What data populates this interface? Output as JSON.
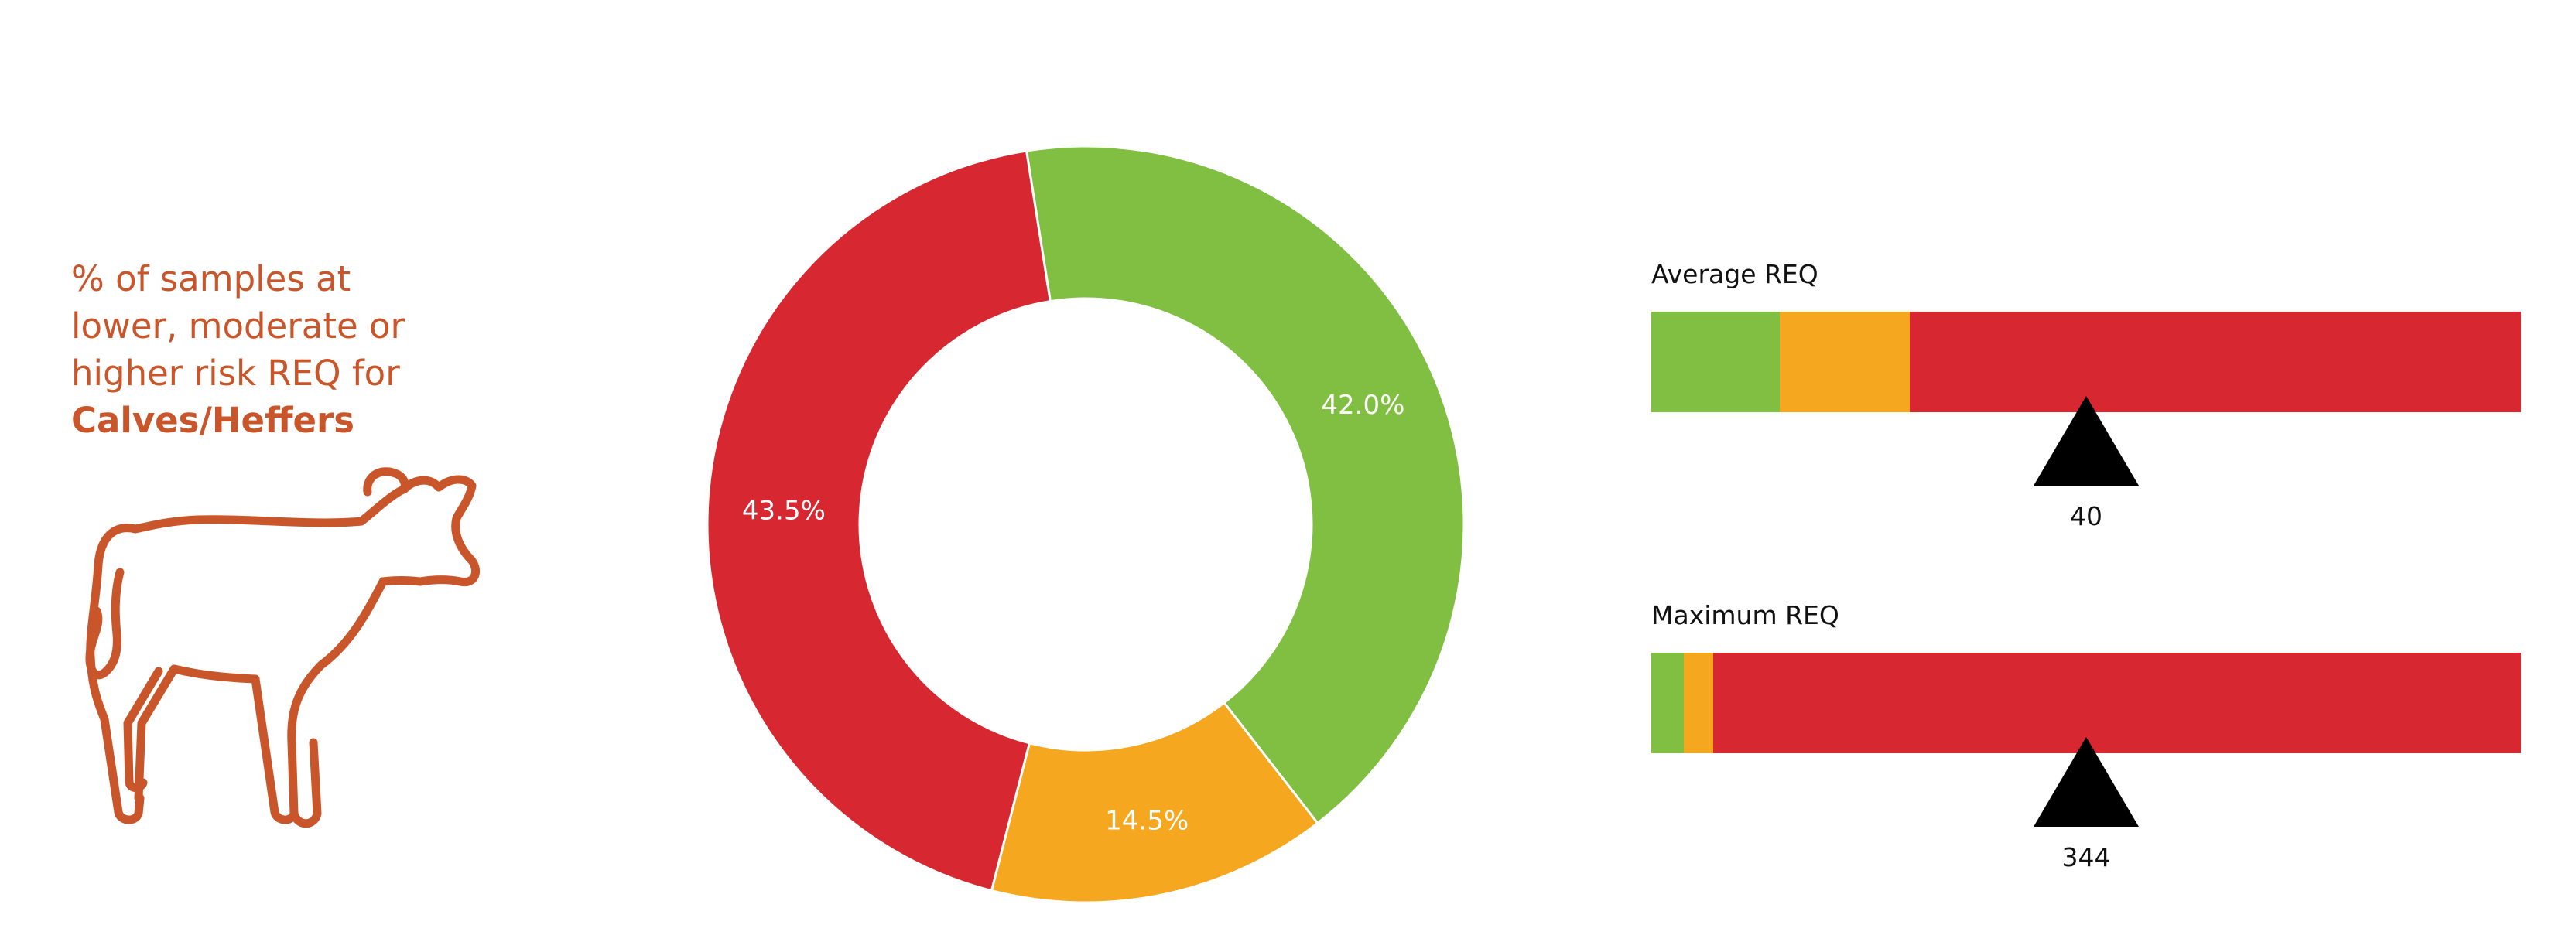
{
  "headline": {
    "line1": "% of samples at",
    "line2": "lower, moderate or",
    "line3": "higher risk REQ for",
    "line4_bold": "Calves/Heffers"
  },
  "icon": "calf-icon",
  "colors": {
    "lower": "#80bf42",
    "moderate": "#f5a81f",
    "higher": "#d72831",
    "text": "#c9562b"
  },
  "chart_data": [
    {
      "type": "pie",
      "donut": true,
      "categories": [
        "lower",
        "moderate",
        "higher"
      ],
      "values": [
        42.0,
        14.5,
        43.5
      ],
      "labels": [
        "42.0%",
        "14.5%",
        "43.5%"
      ]
    },
    {
      "type": "bar",
      "label": "Average REQ",
      "segments": [
        {
          "band": "lower",
          "share": 0.148
        },
        {
          "band": "moderate",
          "share": 0.149
        },
        {
          "band": "higher",
          "share": 0.703
        }
      ],
      "marker_position": 0.5,
      "marker_value": "40"
    },
    {
      "type": "bar",
      "label": "Maximum REQ",
      "segments": [
        {
          "band": "lower",
          "share": 0.037
        },
        {
          "band": "moderate",
          "share": 0.034
        },
        {
          "band": "higher",
          "share": 0.929
        }
      ],
      "marker_position": 0.5,
      "marker_value": "344"
    }
  ]
}
